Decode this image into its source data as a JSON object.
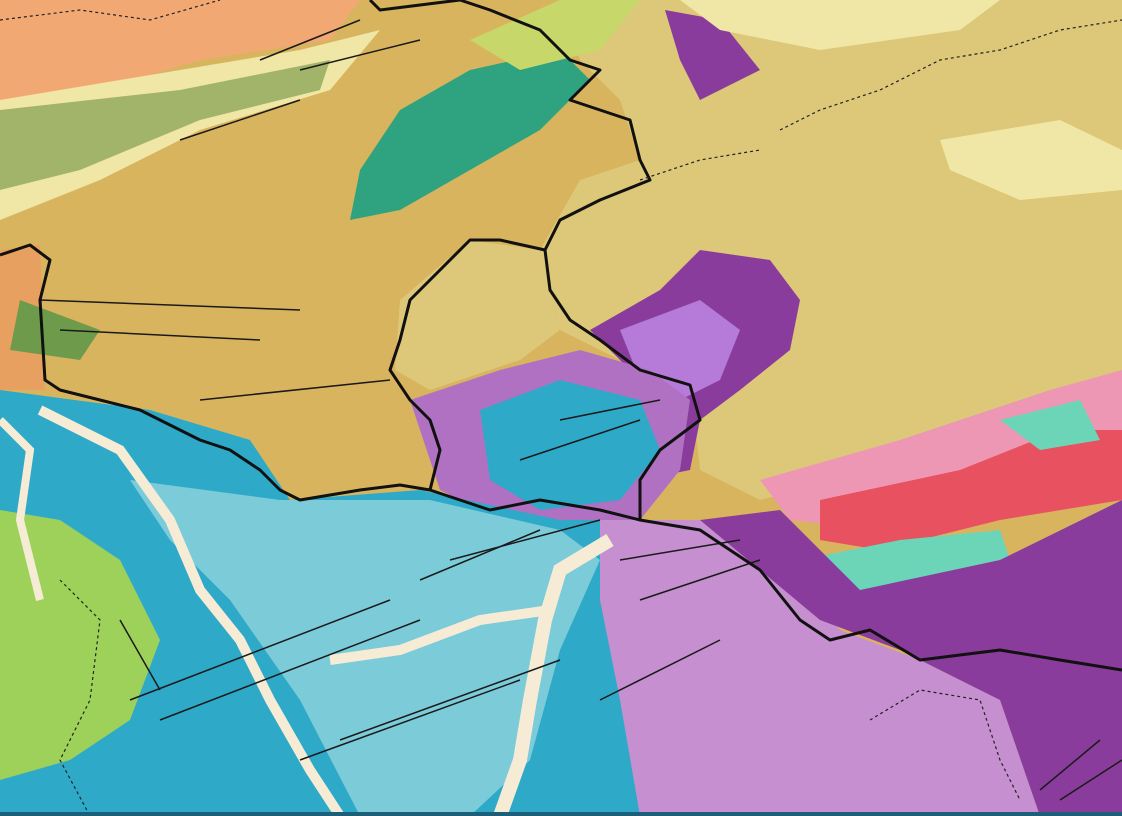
{
  "map": {
    "type": "geological-map",
    "colors": {
      "loess_tan": "#d9b45e",
      "khaki_plain": "#dcc878",
      "orange_north": "#f2a873",
      "pale_yellow": "#f0e7a6",
      "olive_green": "#8fa85a",
      "teal_green": "#2fa37f",
      "purple_dark": "#8a3c9c",
      "purple_mid": "#b071c2",
      "lilac": "#c58fd0",
      "blue_deep": "#2ea9c8",
      "blue_light": "#7ccbd9",
      "river_cream": "#f6ecd6",
      "lime_green": "#9ed15a",
      "pink": "#ee97b5",
      "red_pink": "#e8515f",
      "aqua_green": "#6cd5b8",
      "boundary_black": "#111111",
      "fault_black": "#1a1a1a",
      "bottom_bar": "#1d5f78"
    }
  }
}
